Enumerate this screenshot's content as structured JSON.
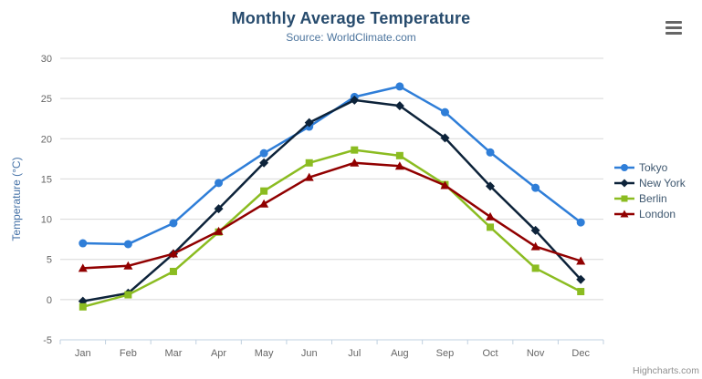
{
  "header": {
    "title": "Monthly Average Temperature",
    "subtitle": "Source: WorldClimate.com"
  },
  "credits": {
    "label": "Highcharts.com"
  },
  "chart_data": {
    "type": "line",
    "title": "Monthly Average Temperature",
    "subtitle": "Source: WorldClimate.com",
    "categories": [
      "Jan",
      "Feb",
      "Mar",
      "Apr",
      "May",
      "Jun",
      "Jul",
      "Aug",
      "Sep",
      "Oct",
      "Nov",
      "Dec"
    ],
    "series": [
      {
        "name": "Tokyo",
        "color": "#2f7ed8",
        "marker": "circle",
        "values": [
          7.0,
          6.9,
          9.5,
          14.5,
          18.2,
          21.5,
          25.2,
          26.5,
          23.3,
          18.3,
          13.9,
          9.6
        ]
      },
      {
        "name": "New York",
        "color": "#0d233a",
        "marker": "diamond",
        "values": [
          -0.2,
          0.8,
          5.7,
          11.3,
          17.0,
          22.0,
          24.8,
          24.1,
          20.1,
          14.1,
          8.6,
          2.5
        ]
      },
      {
        "name": "Berlin",
        "color": "#8bbc21",
        "marker": "square",
        "values": [
          -0.9,
          0.6,
          3.5,
          8.4,
          13.5,
          17.0,
          18.6,
          17.9,
          14.3,
          9.0,
          3.9,
          1.0
        ]
      },
      {
        "name": "London",
        "color": "#910000",
        "marker": "triangle",
        "values": [
          3.9,
          4.2,
          5.7,
          8.5,
          11.9,
          15.2,
          17.0,
          16.6,
          14.2,
          10.3,
          6.6,
          4.8
        ]
      }
    ],
    "xlabel": "",
    "ylabel": "Temperature (°C)",
    "ylim": [
      -5,
      30
    ],
    "ytick_step": 5,
    "grid": true,
    "legend_position": "right",
    "colors": {
      "title": "#274b6d",
      "subtitle": "#4d759e",
      "axis_title": "#4572a7",
      "axis_labels": "#666666",
      "gridline": "#d8d8d8",
      "axis_line": "#c0d0e0",
      "credits": "#909090"
    }
  }
}
